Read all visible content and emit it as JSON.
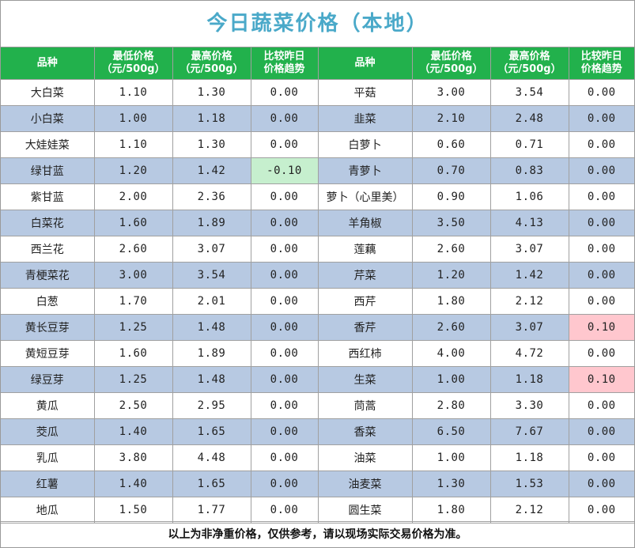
{
  "title": "今日蔬菜价格（本地）",
  "headers": {
    "name": "品种",
    "low_1": "最低价格",
    "low_2": "（元/500g）",
    "high_1": "最高价格",
    "high_2": "（元/500g）",
    "trend_1": "比较昨日",
    "trend_2": "价格趋势"
  },
  "rows": [
    {
      "left": {
        "name": "大白菜",
        "low": "1.10",
        "high": "1.30",
        "change": "0.00"
      },
      "right": {
        "name": "平菇",
        "low": "3.00",
        "high": "3.54",
        "change": "0.00"
      }
    },
    {
      "left": {
        "name": "小白菜",
        "low": "1.00",
        "high": "1.18",
        "change": "0.00"
      },
      "right": {
        "name": "韭菜",
        "low": "2.10",
        "high": "2.48",
        "change": "0.00"
      }
    },
    {
      "left": {
        "name": "大娃娃菜",
        "low": "1.10",
        "high": "1.30",
        "change": "0.00"
      },
      "right": {
        "name": "白萝卜",
        "low": "0.60",
        "high": "0.71",
        "change": "0.00"
      }
    },
    {
      "left": {
        "name": "绿甘蓝",
        "low": "1.20",
        "high": "1.42",
        "change": "-0.10"
      },
      "right": {
        "name": "青萝卜",
        "low": "0.70",
        "high": "0.83",
        "change": "0.00"
      }
    },
    {
      "left": {
        "name": "紫甘蓝",
        "low": "2.00",
        "high": "2.36",
        "change": "0.00"
      },
      "right": {
        "name": "萝卜（心里美）",
        "low": "0.90",
        "high": "1.06",
        "change": "0.00"
      }
    },
    {
      "left": {
        "name": "白菜花",
        "low": "1.60",
        "high": "1.89",
        "change": "0.00"
      },
      "right": {
        "name": "羊角椒",
        "low": "3.50",
        "high": "4.13",
        "change": "0.00"
      }
    },
    {
      "left": {
        "name": "西兰花",
        "low": "2.60",
        "high": "3.07",
        "change": "0.00"
      },
      "right": {
        "name": "莲藕",
        "low": "2.60",
        "high": "3.07",
        "change": "0.00"
      }
    },
    {
      "left": {
        "name": "青梗菜花",
        "low": "3.00",
        "high": "3.54",
        "change": "0.00"
      },
      "right": {
        "name": "芹菜",
        "low": "1.20",
        "high": "1.42",
        "change": "0.00"
      }
    },
    {
      "left": {
        "name": "白葱",
        "low": "1.70",
        "high": "2.01",
        "change": "0.00"
      },
      "right": {
        "name": "西芹",
        "low": "1.80",
        "high": "2.12",
        "change": "0.00"
      }
    },
    {
      "left": {
        "name": "黄长豆芽",
        "low": "1.25",
        "high": "1.48",
        "change": "0.00"
      },
      "right": {
        "name": "香芹",
        "low": "2.60",
        "high": "3.07",
        "change": "0.10"
      }
    },
    {
      "left": {
        "name": "黄短豆芽",
        "low": "1.60",
        "high": "1.89",
        "change": "0.00"
      },
      "right": {
        "name": "西红柿",
        "low": "4.00",
        "high": "4.72",
        "change": "0.00"
      }
    },
    {
      "left": {
        "name": "绿豆芽",
        "low": "1.25",
        "high": "1.48",
        "change": "0.00"
      },
      "right": {
        "name": "生菜",
        "low": "1.00",
        "high": "1.18",
        "change": "0.10"
      }
    },
    {
      "left": {
        "name": "黄瓜",
        "low": "2.50",
        "high": "2.95",
        "change": "0.00"
      },
      "right": {
        "name": "茼蒿",
        "low": "2.80",
        "high": "3.30",
        "change": "0.00"
      }
    },
    {
      "left": {
        "name": "茭瓜",
        "low": "1.40",
        "high": "1.65",
        "change": "0.00"
      },
      "right": {
        "name": "香菜",
        "low": "6.50",
        "high": "7.67",
        "change": "0.00"
      }
    },
    {
      "left": {
        "name": "乳瓜",
        "low": "3.80",
        "high": "4.48",
        "change": "0.00"
      },
      "right": {
        "name": "油菜",
        "low": "1.00",
        "high": "1.18",
        "change": "0.00"
      }
    },
    {
      "left": {
        "name": "红薯",
        "low": "1.40",
        "high": "1.65",
        "change": "0.00"
      },
      "right": {
        "name": "油麦菜",
        "low": "1.30",
        "high": "1.53",
        "change": "0.00"
      }
    },
    {
      "left": {
        "name": "地瓜",
        "low": "1.50",
        "high": "1.77",
        "change": "0.00"
      },
      "right": {
        "name": "圆生菜",
        "low": "1.80",
        "high": "2.12",
        "change": "0.00"
      }
    }
  ],
  "footer": "以上为非净重价格，仅供参考，请以现场实际交易价格为准。",
  "colors": {
    "title_text": "#4aa9c9",
    "header_bg": "#22b14c",
    "row_shade": "#b7c9e2",
    "change_down": "#c6efce",
    "change_up": "#ffc7ce"
  }
}
